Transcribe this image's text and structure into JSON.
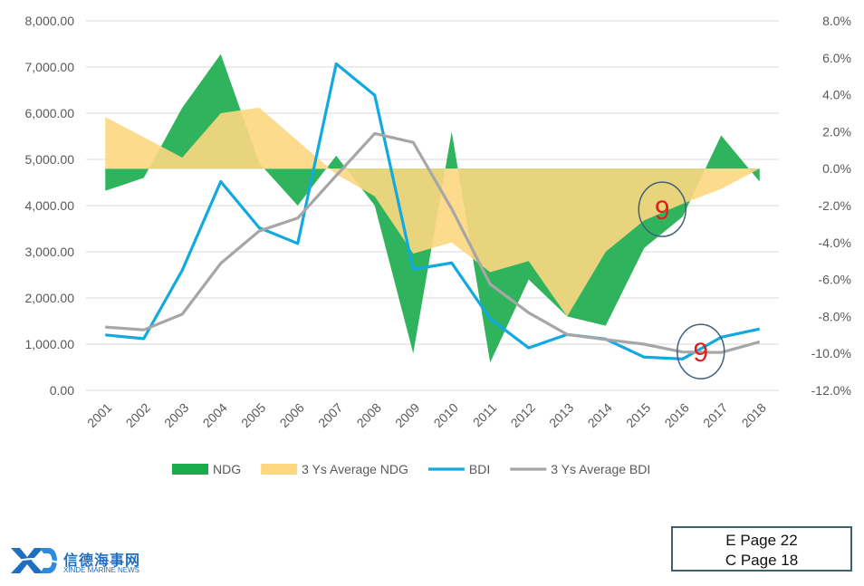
{
  "chart_data": {
    "type": "area",
    "categories": [
      "2001",
      "2002",
      "2003",
      "2004",
      "2005",
      "2006",
      "2007",
      "2008",
      "2009",
      "2010",
      "2011",
      "2012",
      "2013",
      "2014",
      "2015",
      "2016",
      "2017",
      "2018"
    ],
    "y_left": {
      "ylim": [
        0,
        8000
      ],
      "ticks": [
        "0.00",
        "1,000.00",
        "2,000.00",
        "3,000.00",
        "4,000.00",
        "5,000.00",
        "6,000.00",
        "7,000.00",
        "8,000.00"
      ]
    },
    "y_right": {
      "ylim": [
        -12,
        8
      ],
      "ticks": [
        "-12.0%",
        "-10.0%",
        "-8.0%",
        "-6.0%",
        "-4.0%",
        "-2.0%",
        "0.0%",
        "2.0%",
        "4.0%",
        "6.0%",
        "8.0%"
      ]
    },
    "grid": true,
    "legend_position": "bottom",
    "series": [
      {
        "name": "NDG",
        "type": "area",
        "axis": "right",
        "color": "#1aab4b",
        "values": [
          -1.2,
          -0.5,
          3.3,
          6.2,
          0.3,
          -2.0,
          0.7,
          -2.0,
          -10.0,
          2.0,
          -10.5,
          -6.0,
          -8.0,
          -8.5,
          -4.3,
          -2.6,
          1.8,
          -0.7
        ]
      },
      {
        "name": "3 Ys Average NDG",
        "type": "area",
        "axis": "right",
        "color": "#fdd77f",
        "values": [
          2.8,
          1.7,
          0.6,
          3.0,
          3.3,
          1.5,
          -0.3,
          -1.5,
          -4.6,
          -4.0,
          -5.6,
          -5.0,
          -8.0,
          -4.5,
          -2.8,
          -1.9,
          -1.1,
          0.0
        ]
      },
      {
        "name": "BDI",
        "type": "line",
        "axis": "left",
        "color": "#12a9e0",
        "values": [
          1200,
          1120,
          2600,
          4520,
          3520,
          3180,
          7070,
          6390,
          2620,
          2760,
          1550,
          920,
          1210,
          1110,
          720,
          680,
          1150,
          1330
        ]
      },
      {
        "name": "3 Ys Average BDI",
        "type": "line",
        "axis": "left",
        "color": "#a6a6a6",
        "values": [
          1370,
          1310,
          1650,
          2750,
          3450,
          3730,
          4650,
          5560,
          5370,
          3930,
          2300,
          1680,
          1210,
          1100,
          1000,
          830,
          820,
          1050
        ]
      }
    ],
    "annotations": [
      {
        "text": "9",
        "x": "2015",
        "y_right": -2.2,
        "shape": "circle"
      },
      {
        "text": "9",
        "x": "2016",
        "y_right": -9.9,
        "shape": "circle"
      }
    ]
  },
  "logo": {
    "text_zh": "信德海事网",
    "text_en": "XINDE MARINE NEWS",
    "brand_color": "#1f6fc0"
  },
  "page_ref": {
    "line1": "E Page 22",
    "line2": "C Page 18"
  }
}
